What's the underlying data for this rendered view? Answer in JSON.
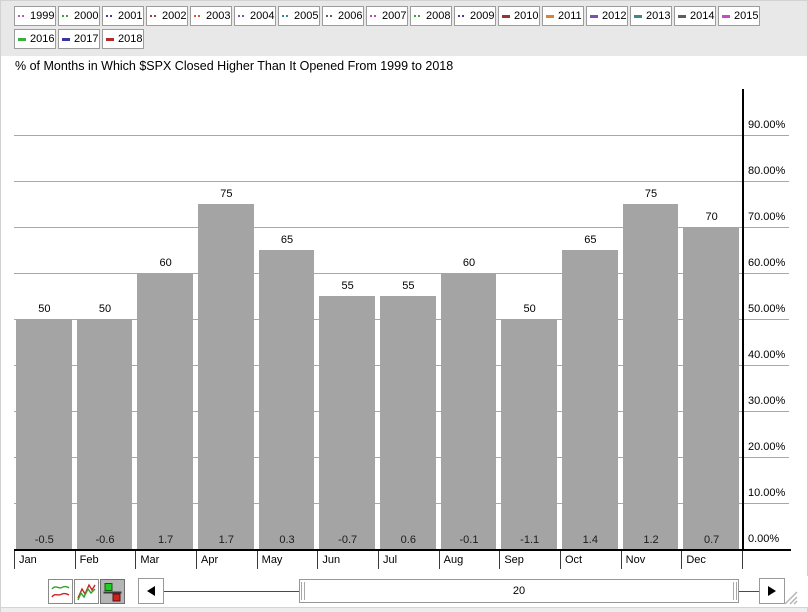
{
  "title": "% of Months in Which $SPX Closed Higher Than It Opened From 1999 to 2018",
  "legend": {
    "years": [
      {
        "label": "1999",
        "style": "dots",
        "color": "#b65cb6"
      },
      {
        "label": "2000",
        "style": "dots",
        "color": "#3aa63a"
      },
      {
        "label": "2001",
        "style": "dots",
        "color": "#3c3c96"
      },
      {
        "label": "2002",
        "style": "dots",
        "color": "#8a4444"
      },
      {
        "label": "2003",
        "style": "dots",
        "color": "#cc5b33"
      },
      {
        "label": "2004",
        "style": "dots",
        "color": "#7d4fb0"
      },
      {
        "label": "2005",
        "style": "dots",
        "color": "#3a8a8a"
      },
      {
        "label": "2006",
        "style": "dots",
        "color": "#5c5c66"
      },
      {
        "label": "2007",
        "style": "dots",
        "color": "#b44cb4"
      },
      {
        "label": "2008",
        "style": "dots",
        "color": "#3aa63a"
      },
      {
        "label": "2009",
        "style": "dots",
        "color": "#3c3c96"
      },
      {
        "label": "2010",
        "style": "dash",
        "color": "#993333"
      },
      {
        "label": "2011",
        "style": "dash",
        "color": "#d98433"
      },
      {
        "label": "2012",
        "style": "dash",
        "color": "#7d4fb0"
      },
      {
        "label": "2013",
        "style": "dash",
        "color": "#3a8a8a"
      },
      {
        "label": "2014",
        "style": "dash",
        "color": "#5c5c5c"
      },
      {
        "label": "2015",
        "style": "dash",
        "color": "#c44cc4"
      },
      {
        "label": "2016",
        "style": "dash",
        "color": "#3ab03a"
      },
      {
        "label": "2017",
        "style": "dash",
        "color": "#38389a"
      },
      {
        "label": "2018",
        "style": "dash",
        "color": "#b22a2a"
      }
    ]
  },
  "chart_data": {
    "type": "bar",
    "title": "% of Months in Which $SPX Closed Higher Than It Opened From 1999 to 2018",
    "categories": [
      "Jan",
      "Feb",
      "Mar",
      "Apr",
      "May",
      "Jun",
      "Jul",
      "Aug",
      "Sep",
      "Oct",
      "Nov",
      "Dec"
    ],
    "values": [
      50,
      50,
      60,
      75,
      65,
      55,
      55,
      60,
      50,
      65,
      75,
      70
    ],
    "bar_top_labels": [
      "50",
      "50",
      "60",
      "75",
      "65",
      "55",
      "55",
      "60",
      "50",
      "65",
      "75",
      "70"
    ],
    "bar_bottom_labels": [
      "-0.5",
      "-0.6",
      "1.7",
      "1.7",
      "0.3",
      "-0.7",
      "0.6",
      "-0.1",
      "-1.1",
      "1.4",
      "1.2",
      "0.7"
    ],
    "xlabel": "",
    "ylabel": "",
    "ylim": [
      0,
      100
    ],
    "ytick_labels": [
      "0.00%",
      "10.00%",
      "20.00%",
      "30.00%",
      "40.00%",
      "50.00%",
      "60.00%",
      "70.00%",
      "80.00%",
      "90.00%"
    ],
    "ytick_step_pct": 10,
    "grid": true,
    "y_axis_position": "right",
    "legend_position": "top",
    "bar_color": "#a4a4a4",
    "grid_color": "#a8a8a8",
    "axis_color": "#000000"
  },
  "toolbar": {
    "chart_type_buttons": [
      {
        "name": "smooth-line-chart-icon",
        "selected": false
      },
      {
        "name": "zigzag-line-chart-icon",
        "selected": false
      },
      {
        "name": "bar-chart-icon",
        "selected": true
      }
    ],
    "scrollbar": {
      "value": "20"
    }
  }
}
